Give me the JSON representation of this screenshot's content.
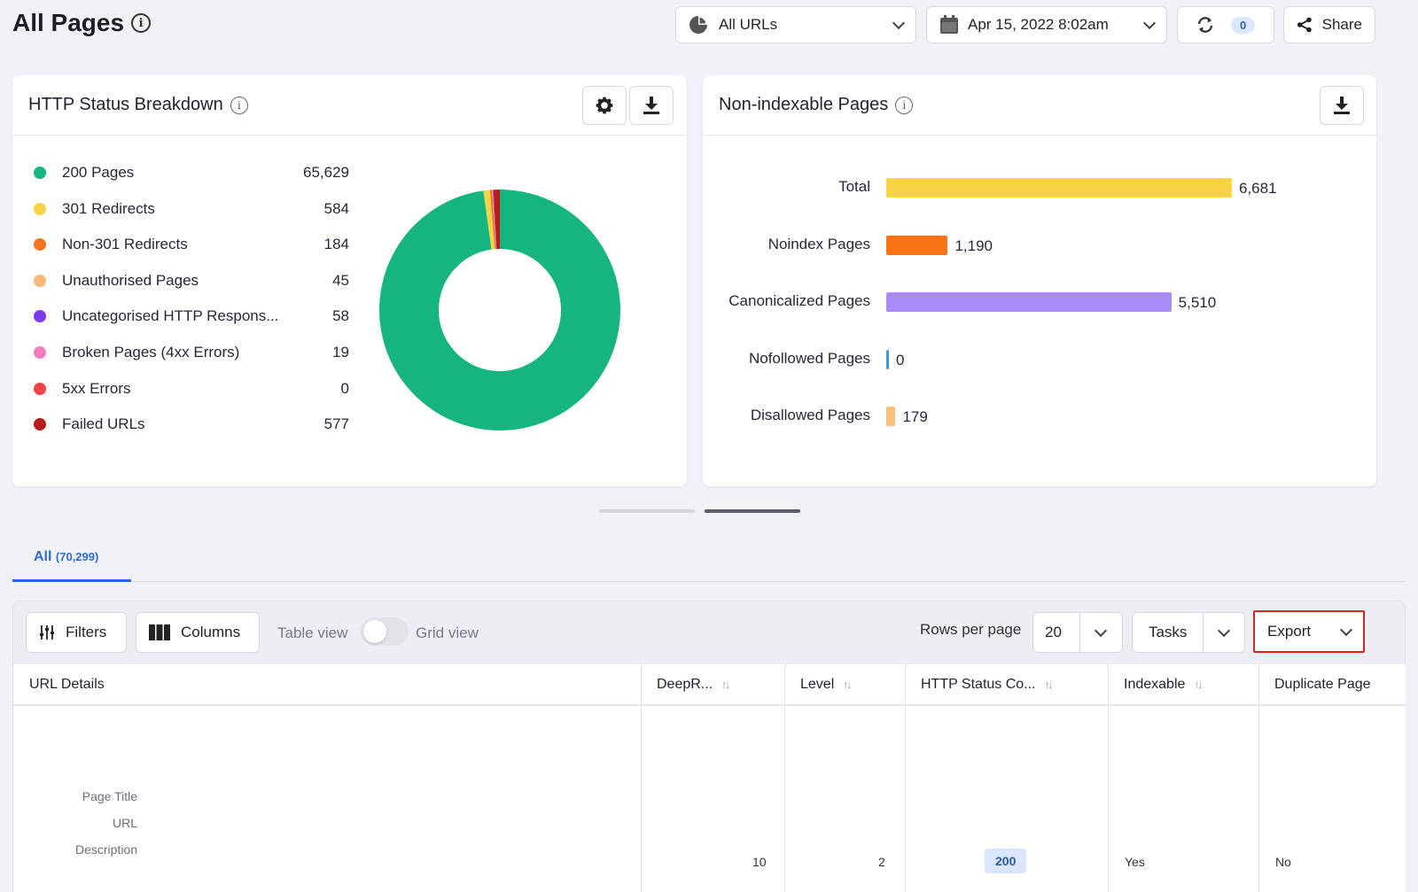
{
  "header": {
    "title": "All Pages"
  },
  "filters": {
    "segment": "All URLs",
    "date": "Apr 15, 2022 8:02am",
    "sync_count": "0",
    "share_label": "Share"
  },
  "http_status": {
    "title": "HTTP Status Breakdown",
    "items": [
      {
        "label": "200 Pages",
        "value": "65,629",
        "color": "#16b57f"
      },
      {
        "label": "301 Redirects",
        "value": "584",
        "color": "#f7d347"
      },
      {
        "label": "Non-301 Redirects",
        "value": "184",
        "color": "#f5731f"
      },
      {
        "label": "Unauthorised Pages",
        "value": "45",
        "color": "#f8b87a"
      },
      {
        "label": "Uncategorised HTTP Respons...",
        "value": "58",
        "color": "#7c3aed"
      },
      {
        "label": "Broken Pages (4xx Errors)",
        "value": "19",
        "color": "#f17fc0"
      },
      {
        "label": "5xx Errors",
        "value": "0",
        "color": "#ef4444"
      },
      {
        "label": "Failed URLs",
        "value": "577",
        "color": "#b91c1c"
      }
    ]
  },
  "non_indexable": {
    "title": "Non-indexable Pages",
    "bars": [
      {
        "label": "Total",
        "value": "6,681",
        "color": "#fbd347"
      },
      {
        "label": "Noindex Pages",
        "value": "1,190",
        "color": "#f97316"
      },
      {
        "label": "Canonicalized Pages",
        "value": "5,510",
        "color": "#a78bfa"
      },
      {
        "label": "Nofollowed Pages",
        "value": "0",
        "color": "#3b9bd8"
      },
      {
        "label": "Disallowed Pages",
        "value": "179",
        "color": "#fbbf7a"
      }
    ]
  },
  "chart_data": [
    {
      "type": "pie",
      "title": "HTTP Status Breakdown",
      "categories": [
        "200 Pages",
        "301 Redirects",
        "Non-301 Redirects",
        "Unauthorised Pages",
        "Uncategorised HTTP Respons...",
        "Broken Pages (4xx Errors)",
        "5xx Errors",
        "Failed URLs"
      ],
      "values": [
        65629,
        584,
        184,
        45,
        58,
        19,
        0,
        577
      ],
      "donut": true
    },
    {
      "type": "bar",
      "orientation": "horizontal",
      "title": "Non-indexable Pages",
      "categories": [
        "Total",
        "Noindex Pages",
        "Canonicalized Pages",
        "Nofollowed Pages",
        "Disallowed Pages"
      ],
      "values": [
        6681,
        1190,
        5510,
        0,
        179
      ],
      "xlim": [
        0,
        6681
      ]
    }
  ],
  "tabs": {
    "all_label": "All",
    "all_count": "(70,299)"
  },
  "toolbar": {
    "filters": "Filters",
    "columns": "Columns",
    "table_view": "Table view",
    "grid_view": "Grid view",
    "rows_per_page_label": "Rows per page",
    "rows_per_page": "20",
    "tasks": "Tasks",
    "export": "Export"
  },
  "table": {
    "columns": [
      "URL Details",
      "DeepR...",
      "Level",
      "HTTP Status Co...",
      "Indexable",
      "Duplicate Page"
    ],
    "row_labels": [
      "Page Title",
      "URL",
      "Description"
    ],
    "row": {
      "deeprank": "10",
      "level": "2",
      "status": "200",
      "indexable": "Yes",
      "duplicate": "No"
    }
  }
}
